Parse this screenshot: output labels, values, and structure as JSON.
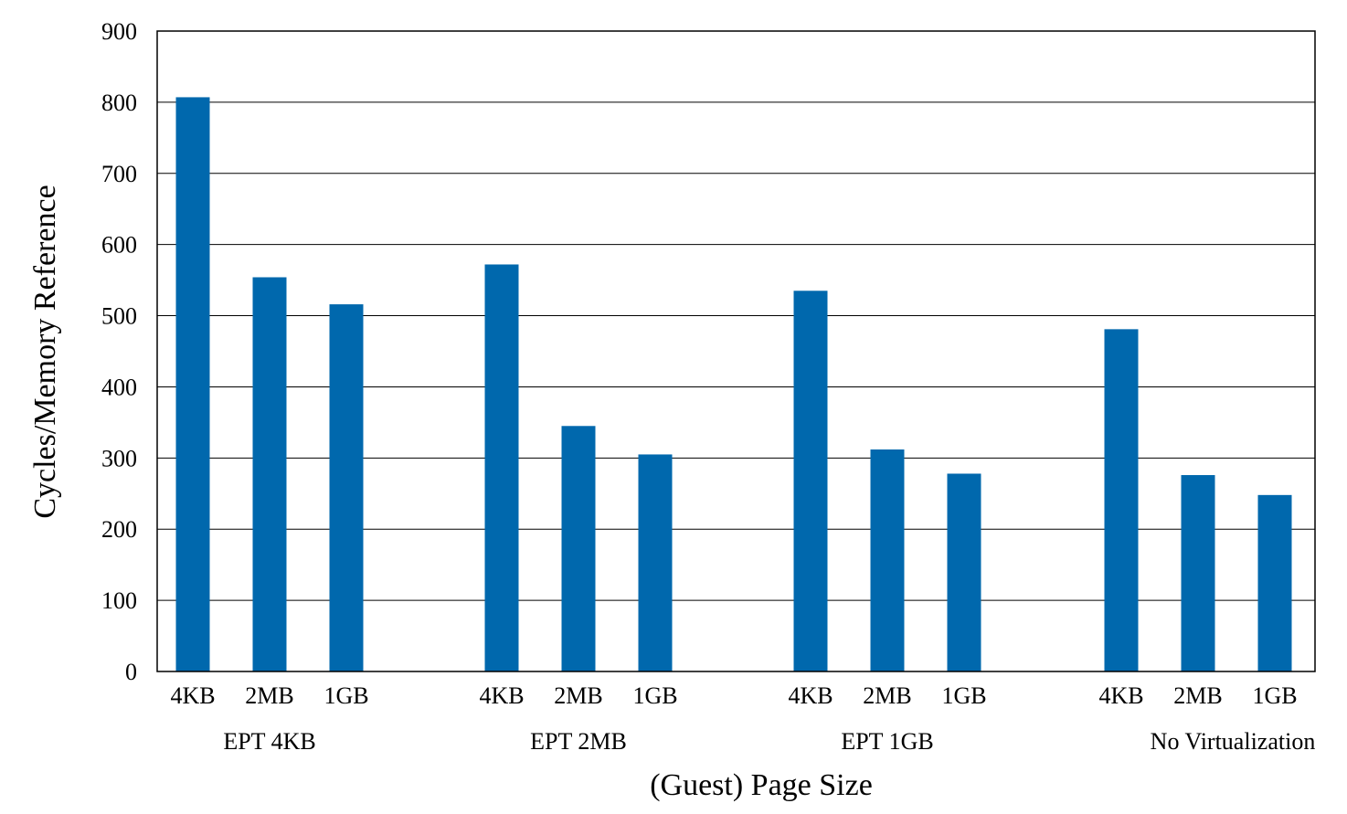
{
  "chart_data": {
    "type": "bar",
    "xlabel": "(Guest) Page Size",
    "ylabel": "Cycles/Memory Reference",
    "ylim": [
      0,
      900
    ],
    "yticks": [
      0,
      100,
      200,
      300,
      400,
      500,
      600,
      700,
      800,
      900
    ],
    "grid": true,
    "bar_color": "#0068ad",
    "groups": [
      {
        "label": "EPT 4KB",
        "categories": [
          "4KB",
          "2MB",
          "1GB"
        ],
        "values": [
          807,
          554,
          516
        ]
      },
      {
        "label": "EPT 2MB",
        "categories": [
          "4KB",
          "2MB",
          "1GB"
        ],
        "values": [
          572,
          345,
          305
        ]
      },
      {
        "label": "EPT 1GB",
        "categories": [
          "4KB",
          "2MB",
          "1GB"
        ],
        "values": [
          535,
          312,
          278
        ]
      },
      {
        "label": "No Virtualization",
        "categories": [
          "4KB",
          "2MB",
          "1GB"
        ],
        "values": [
          481,
          276,
          248
        ]
      }
    ]
  }
}
